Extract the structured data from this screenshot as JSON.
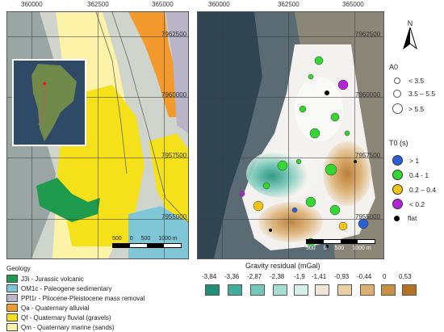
{
  "left_map": {
    "top_ticks": [
      "360000",
      "362500",
      "365000"
    ],
    "right_ticks": [
      "7962500",
      "7960000",
      "7957500",
      "7955000"
    ],
    "scale_labels": [
      "500",
      "0",
      "500",
      "1000 m"
    ]
  },
  "right_map": {
    "top_ticks": [
      "360000",
      "362500",
      "365000"
    ],
    "right_ticks": [
      "7962500",
      "7960000",
      "7957500",
      "7955000"
    ],
    "scale_labels": [
      "500",
      "0",
      "500",
      "1000 m"
    ]
  },
  "north_label": "N",
  "a0_legend": {
    "title": "A0",
    "items": [
      "< 3.5",
      "3.5 – 5.5",
      "> 5.5"
    ]
  },
  "t0_legend": {
    "title": "T0 (s)",
    "items": [
      {
        "label": "> 1",
        "color": "#2a5fd6"
      },
      {
        "label": "0.4 - 1",
        "color": "#33d633"
      },
      {
        "label": "0.2 – 0.4",
        "color": "#f0c419"
      },
      {
        "label": "< 0.2",
        "color": "#b224d6"
      },
      {
        "label": "flat",
        "color": "#000000"
      }
    ]
  },
  "geology_legend": {
    "title": "Geology",
    "items": [
      {
        "label": "J3i - Jurassic volcanic",
        "color": "#1e9b4c"
      },
      {
        "label": "OM1c - Paleogene sedimentary",
        "color": "#7fc6d6"
      },
      {
        "label": "PPl1r - Pliocene-Pleistocene mass removal",
        "color": "#b9b4c8"
      },
      {
        "label": "Qa - Quaternary alluvial",
        "color": "#f29a2e"
      },
      {
        "label": "Qf - Quaternary fluvial (gravels)",
        "color": "#f5e11a"
      },
      {
        "label": "Qm - Quaternary marine (sands)",
        "color": "#fdf3a8"
      }
    ]
  },
  "gravity_legend": {
    "title": "Gravity residual (mGal)",
    "ticks": [
      "-3,84",
      "-3,36",
      "-2,87",
      "-2,38",
      "-1,9",
      "-1,41",
      "-0,93",
      "-0,44",
      "0",
      "0,53"
    ],
    "colors": [
      "#1f8f7a",
      "#3fae99",
      "#72c7b6",
      "#a6ddd1",
      "#d5efe9",
      "#efe6d6",
      "#e8cfa4",
      "#dcb071",
      "#c98f42",
      "#b57223"
    ]
  }
}
